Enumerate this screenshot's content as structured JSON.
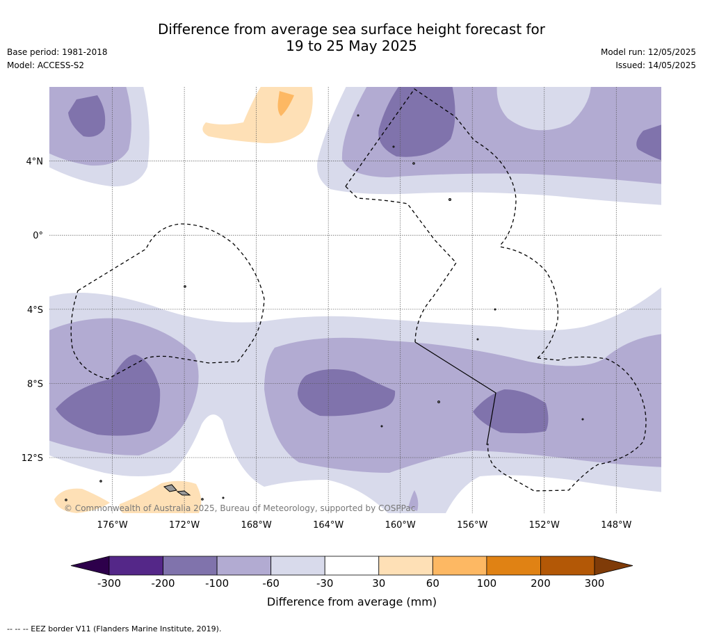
{
  "header": {
    "title_line1": "Difference from average sea surface height forecast for",
    "title_line2": "19 to 25 May 2025",
    "base_period": "Base period: 1981-2018",
    "model": "Model: ACCESS-S2",
    "model_run": "Model run: 12/05/2025",
    "issued": "Issued: 14/05/2025"
  },
  "map": {
    "lon_range": [
      -179.5,
      -145.5
    ],
    "lat_range": [
      -15.0,
      8.0
    ],
    "lat_ticks": [
      {
        "value": 4,
        "label": "4°N"
      },
      {
        "value": 0,
        "label": "0°"
      },
      {
        "value": -4,
        "label": "4°S"
      },
      {
        "value": -8,
        "label": "8°S"
      },
      {
        "value": -12,
        "label": "12°S"
      }
    ],
    "lon_ticks": [
      {
        "value": -176,
        "label": "176°W"
      },
      {
        "value": -172,
        "label": "172°W"
      },
      {
        "value": -168,
        "label": "168°W"
      },
      {
        "value": -164,
        "label": "164°W"
      },
      {
        "value": -160,
        "label": "160°W"
      },
      {
        "value": -156,
        "label": "156°W"
      },
      {
        "value": -152,
        "label": "152°W"
      },
      {
        "value": -148,
        "label": "148°W"
      }
    ],
    "gridlines": true,
    "copyright": "© Commonwealth of Australia 2025, Bureau of Meteorology, supported by COSPPac"
  },
  "colorbar": {
    "ticks": [
      "-300",
      "-200",
      "-100",
      "-60",
      "-30",
      "30",
      "60",
      "100",
      "200",
      "300"
    ],
    "colors": [
      "#542788",
      "#8073ac",
      "#b2abd2",
      "#d8daeb",
      "#ffffff",
      "#fee0b6",
      "#fdb863",
      "#e08214",
      "#b35806"
    ],
    "extend_low_color": "#2d004b",
    "extend_high_color": "#7f3b08",
    "label": "Difference from average (mm)"
  },
  "footnote": "--  --  -- EEZ border V11 (Flanders Marine Institute, 2019)."
}
